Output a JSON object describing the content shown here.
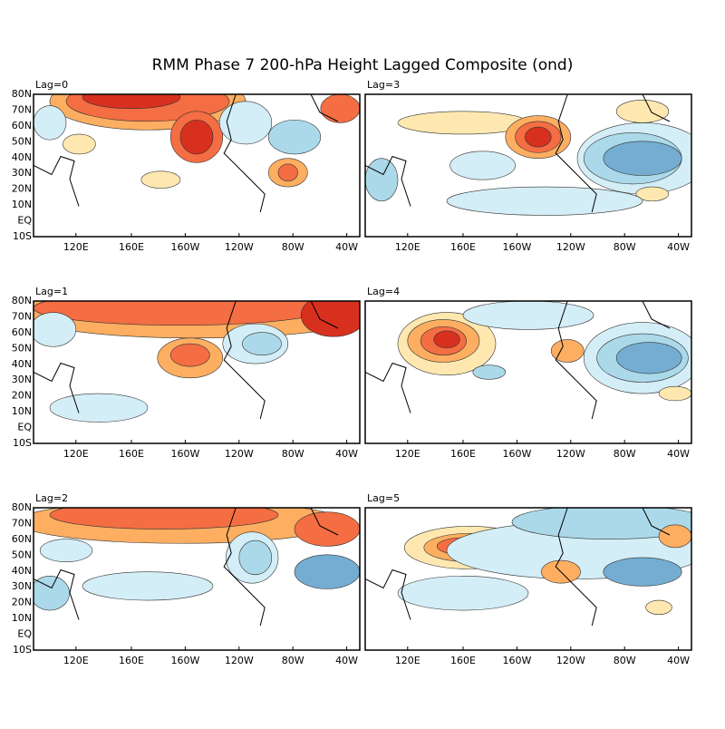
{
  "title": "RMM Phase 7 200-hPa Height Lagged Composite (ond)",
  "panels": [
    {
      "label": "Lag=0"
    },
    {
      "label": "Lag=3"
    },
    {
      "label": "Lag=1"
    },
    {
      "label": "Lag=4"
    },
    {
      "label": "Lag=2"
    },
    {
      "label": "Lag=5"
    }
  ],
  "lat_labels": [
    "80N",
    "70N",
    "60N",
    "50N",
    "40N",
    "30N",
    "20N",
    "10N",
    "EQ",
    "10S"
  ],
  "lon_labels": [
    "120E",
    "160E",
    "160W",
    "120W",
    "80W",
    "40W"
  ]
}
